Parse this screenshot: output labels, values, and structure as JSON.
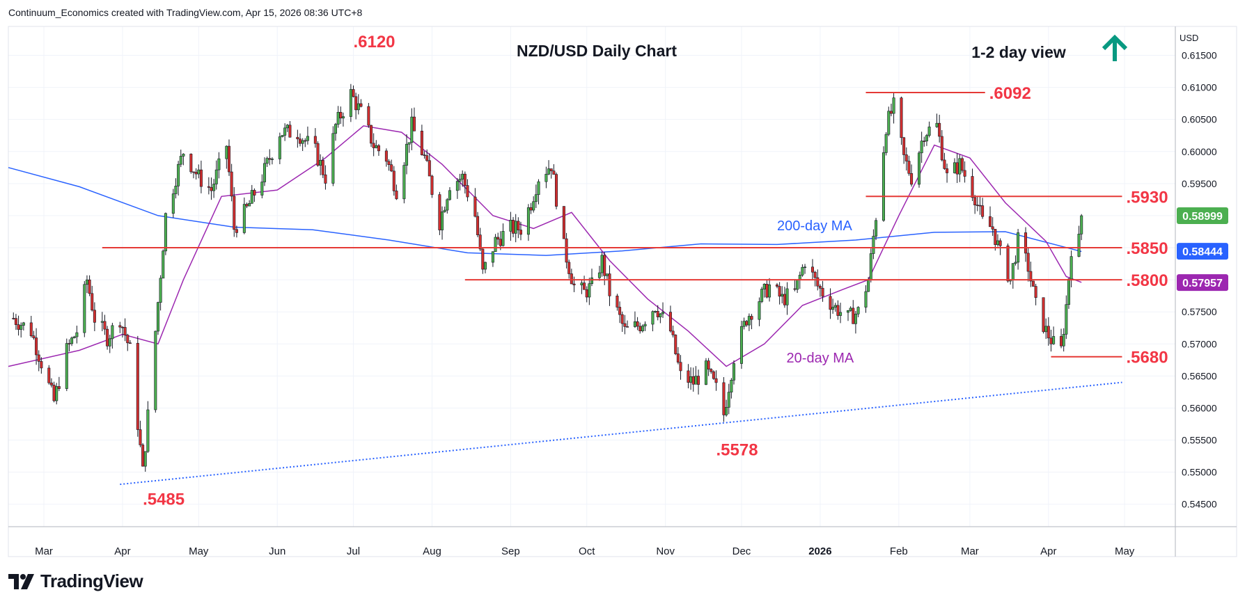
{
  "header": {
    "text": "Continuum_Economics created with TradingView.com, Apr 15, 2026 08:36 UTC+8"
  },
  "footer": {
    "brand": "TradingView"
  },
  "colors": {
    "up": "#4caf50",
    "down": "#d32f2f",
    "wick": "#131722",
    "ma200": "#2962ff",
    "ma20": "#9c27b0",
    "level": "#e53935",
    "trend": "#2962ff",
    "arrow": "#089981",
    "annotation": "#f23645",
    "price_green": "#4caf50",
    "price_blue": "#2962ff",
    "price_purple": "#9c27b0"
  },
  "chart_data": {
    "type": "candlestick",
    "title": "NZD/USD Daily Chart",
    "view_label": "1-2 day view",
    "view_direction": "up-arrow-icon",
    "currency": "USD",
    "ylim": [
      0.5415,
      0.6195
    ],
    "y_ticks": [
      {
        "v": 0.615,
        "label": "0.61500"
      },
      {
        "v": 0.61,
        "label": "0.61000"
      },
      {
        "v": 0.605,
        "label": "0.60500"
      },
      {
        "v": 0.6,
        "label": "0.60000"
      },
      {
        "v": 0.595,
        "label": "0.59500"
      },
      {
        "v": 0.59,
        "label": "0.59000"
      },
      {
        "v": 0.585,
        "label": "0.58500"
      },
      {
        "v": 0.58,
        "label": "0.58000"
      },
      {
        "v": 0.575,
        "label": "0.57500"
      },
      {
        "v": 0.57,
        "label": "0.57000"
      },
      {
        "v": 0.565,
        "label": "0.56500"
      },
      {
        "v": 0.56,
        "label": "0.56000"
      },
      {
        "v": 0.555,
        "label": "0.55500"
      },
      {
        "v": 0.55,
        "label": "0.55000"
      },
      {
        "v": 0.545,
        "label": "0.54500"
      }
    ],
    "x_ticks": [
      {
        "date": "2025-03-01",
        "label": "Mar",
        "bold": false
      },
      {
        "date": "2025-04-01",
        "label": "Apr",
        "bold": false
      },
      {
        "date": "2025-05-01",
        "label": "May",
        "bold": false
      },
      {
        "date": "2025-06-01",
        "label": "Jun",
        "bold": false
      },
      {
        "date": "2025-07-01",
        "label": "Jul",
        "bold": false
      },
      {
        "date": "2025-08-01",
        "label": "Aug",
        "bold": false
      },
      {
        "date": "2025-09-01",
        "label": "Sep",
        "bold": false
      },
      {
        "date": "2025-10-01",
        "label": "Oct",
        "bold": false
      },
      {
        "date": "2025-11-01",
        "label": "Nov",
        "bold": false
      },
      {
        "date": "2025-12-01",
        "label": "Dec",
        "bold": false
      },
      {
        "date": "2026-01-01",
        "label": "2026",
        "bold": true
      },
      {
        "date": "2026-02-01",
        "label": "Feb",
        "bold": false
      },
      {
        "date": "2026-03-01",
        "label": "Mar",
        "bold": false
      },
      {
        "date": "2026-04-01",
        "label": "Apr",
        "bold": false
      },
      {
        "date": "2026-05-01",
        "label": "May",
        "bold": false
      }
    ],
    "x_range": [
      "2025-02-15",
      "2026-05-21"
    ],
    "price_path": [
      [
        "2025-02-17",
        0.574
      ],
      [
        "2025-02-24",
        0.572
      ],
      [
        "2025-03-05",
        0.561
      ],
      [
        "2025-03-10",
        0.569
      ],
      [
        "2025-03-14",
        0.572
      ],
      [
        "2025-03-18",
        0.58
      ],
      [
        "2025-03-21",
        0.574
      ],
      [
        "2025-03-26",
        0.571
      ],
      [
        "2025-03-31",
        0.574
      ],
      [
        "2025-04-04",
        0.569
      ],
      [
        "2025-04-09",
        0.55
      ],
      [
        "2025-04-14",
        0.572
      ],
      [
        "2025-04-18",
        0.59
      ],
      [
        "2025-04-22",
        0.596
      ],
      [
        "2025-04-25",
        0.6
      ],
      [
        "2025-05-01",
        0.596
      ],
      [
        "2025-05-06",
        0.594
      ],
      [
        "2025-05-12",
        0.601
      ],
      [
        "2025-05-15",
        0.588
      ],
      [
        "2025-05-20",
        0.591
      ],
      [
        "2025-05-26",
        0.596
      ],
      [
        "2025-06-02",
        0.603
      ],
      [
        "2025-06-09",
        0.603
      ],
      [
        "2025-06-16",
        0.6
      ],
      [
        "2025-06-20",
        0.596
      ],
      [
        "2025-06-24",
        0.604
      ],
      [
        "2025-06-30",
        0.609
      ],
      [
        "2025-07-04",
        0.606
      ],
      [
        "2025-07-09",
        0.601
      ],
      [
        "2025-07-14",
        0.599
      ],
      [
        "2025-07-18",
        0.594
      ],
      [
        "2025-07-24",
        0.604
      ],
      [
        "2025-07-29",
        0.599
      ],
      [
        "2025-08-04",
        0.589
      ],
      [
        "2025-08-08",
        0.595
      ],
      [
        "2025-08-13",
        0.596
      ],
      [
        "2025-08-18",
        0.59
      ],
      [
        "2025-08-21",
        0.581
      ],
      [
        "2025-08-26",
        0.586
      ],
      [
        "2025-09-01",
        0.588
      ],
      [
        "2025-09-05",
        0.588
      ],
      [
        "2025-09-09",
        0.592
      ],
      [
        "2025-09-12",
        0.596
      ],
      [
        "2025-09-17",
        0.598
      ],
      [
        "2025-09-22",
        0.585
      ],
      [
        "2025-09-26",
        0.579
      ],
      [
        "2025-09-30",
        0.578
      ],
      [
        "2025-10-03",
        0.579
      ],
      [
        "2025-10-07",
        0.583
      ],
      [
        "2025-10-10",
        0.578
      ],
      [
        "2025-10-16",
        0.572
      ],
      [
        "2025-10-22",
        0.573
      ],
      [
        "2025-10-28",
        0.576
      ],
      [
        "2025-11-03",
        0.572
      ],
      [
        "2025-11-07",
        0.565
      ],
      [
        "2025-11-12",
        0.564
      ],
      [
        "2025-11-17",
        0.566
      ],
      [
        "2025-11-21",
        0.563
      ],
      [
        "2025-11-24",
        0.559
      ],
      [
        "2025-11-28",
        0.568
      ],
      [
        "2025-12-03",
        0.574
      ],
      [
        "2025-12-08",
        0.577
      ],
      [
        "2025-12-12",
        0.579
      ],
      [
        "2025-12-17",
        0.577
      ],
      [
        "2025-12-22",
        0.578
      ],
      [
        "2025-12-26",
        0.583
      ],
      [
        "2025-12-31",
        0.579
      ],
      [
        "2026-01-06",
        0.576
      ],
      [
        "2026-01-12",
        0.574
      ],
      [
        "2026-01-16",
        0.575
      ],
      [
        "2026-01-20",
        0.58
      ],
      [
        "2026-01-23",
        0.59
      ],
      [
        "2026-01-27",
        0.604
      ],
      [
        "2026-01-30",
        0.607
      ],
      [
        "2026-02-03",
        0.599
      ],
      [
        "2026-02-06",
        0.596
      ],
      [
        "2026-02-11",
        0.603
      ],
      [
        "2026-02-16",
        0.604
      ],
      [
        "2026-02-20",
        0.596
      ],
      [
        "2026-02-25",
        0.598
      ],
      [
        "2026-03-03",
        0.593
      ],
      [
        "2026-03-06",
        0.589
      ],
      [
        "2026-03-10",
        0.588
      ],
      [
        "2026-03-13",
        0.584
      ],
      [
        "2026-03-17",
        0.58
      ],
      [
        "2026-03-20",
        0.586
      ],
      [
        "2026-03-24",
        0.582
      ],
      [
        "2026-03-27",
        0.576
      ],
      [
        "2026-03-31",
        0.572
      ],
      [
        "2026-04-03",
        0.57
      ],
      [
        "2026-04-06",
        0.569
      ],
      [
        "2026-04-08",
        0.576
      ],
      [
        "2026-04-10",
        0.585
      ],
      [
        "2026-04-13",
        0.586
      ],
      [
        "2026-04-14",
        0.59
      ]
    ],
    "ma200": [
      [
        "2025-02-15",
        0.5975
      ],
      [
        "2025-03-15",
        0.5945
      ],
      [
        "2025-04-15",
        0.59
      ],
      [
        "2025-05-15",
        0.5882
      ],
      [
        "2025-06-15",
        0.5878
      ],
      [
        "2025-07-15",
        0.5862
      ],
      [
        "2025-08-15",
        0.5842
      ],
      [
        "2025-09-15",
        0.5838
      ],
      [
        "2025-10-15",
        0.5845
      ],
      [
        "2025-11-15",
        0.5856
      ],
      [
        "2025-12-15",
        0.5855
      ],
      [
        "2026-01-15",
        0.5862
      ],
      [
        "2026-02-15",
        0.5874
      ],
      [
        "2026-03-15",
        0.5875
      ],
      [
        "2026-04-14",
        0.5844
      ]
    ],
    "ma20": [
      [
        "2025-02-15",
        0.5665
      ],
      [
        "2025-03-15",
        0.569
      ],
      [
        "2025-04-01",
        0.5715
      ],
      [
        "2025-04-15",
        0.57
      ],
      [
        "2025-04-25",
        0.58
      ],
      [
        "2025-05-10",
        0.593
      ],
      [
        "2025-06-01",
        0.594
      ],
      [
        "2025-06-20",
        0.599
      ],
      [
        "2025-07-05",
        0.604
      ],
      [
        "2025-07-20",
        0.603
      ],
      [
        "2025-08-05",
        0.598
      ],
      [
        "2025-08-25",
        0.59
      ],
      [
        "2025-09-10",
        0.588
      ],
      [
        "2025-09-25",
        0.5905
      ],
      [
        "2025-10-10",
        0.583
      ],
      [
        "2025-10-25",
        0.577
      ],
      [
        "2025-11-10",
        0.572
      ],
      [
        "2025-11-25",
        0.5665
      ],
      [
        "2025-12-10",
        0.57
      ],
      [
        "2025-12-25",
        0.576
      ],
      [
        "2026-01-10",
        0.5785
      ],
      [
        "2026-01-20",
        0.58
      ],
      [
        "2026-02-01",
        0.59
      ],
      [
        "2026-02-15",
        0.601
      ],
      [
        "2026-03-01",
        0.599
      ],
      [
        "2026-03-15",
        0.592
      ],
      [
        "2026-03-31",
        0.586
      ],
      [
        "2026-04-08",
        0.5805
      ],
      [
        "2026-04-14",
        0.5796
      ]
    ],
    "levels": [
      {
        "label": ".6092",
        "value": 0.6092,
        "from": "2026-01-19",
        "to": "2026-03-07"
      },
      {
        "label": ".5930",
        "value": 0.593,
        "from": "2026-01-19",
        "to": "2026-04-30"
      },
      {
        "label": ".5850",
        "value": 0.585,
        "from": "2025-03-24",
        "to": "2026-04-30"
      },
      {
        "label": ".5800",
        "value": 0.58,
        "from": "2025-08-14",
        "to": "2026-04-30"
      },
      {
        "label": ".5680",
        "value": 0.568,
        "from": "2026-04-02",
        "to": "2026-04-30"
      }
    ],
    "annotations": [
      {
        "label": ".6120",
        "date": "2025-07-01",
        "value": 0.6171
      },
      {
        "label": ".5485",
        "date": "2025-04-09",
        "value": 0.5458
      },
      {
        "label": ".5578",
        "date": "2025-11-21",
        "value": 0.5535
      }
    ],
    "trendline": {
      "from": [
        "2025-03-31",
        0.5481
      ],
      "to": [
        "2026-04-30",
        0.564
      ]
    },
    "ma_labels": [
      {
        "label": "200-day MA",
        "date": "2025-12-15",
        "value": 0.5877
      },
      {
        "label": "20-day MA",
        "date": "2026-01-01",
        "value": 0.5671
      }
    ],
    "price_labels": [
      {
        "label": "0.58999",
        "value": 0.58999,
        "color_key": "price_green"
      },
      {
        "label": "0.58444",
        "value": 0.58444,
        "color_key": "price_blue"
      },
      {
        "label": "0.57957",
        "value": 0.57957,
        "color_key": "price_purple"
      }
    ]
  }
}
